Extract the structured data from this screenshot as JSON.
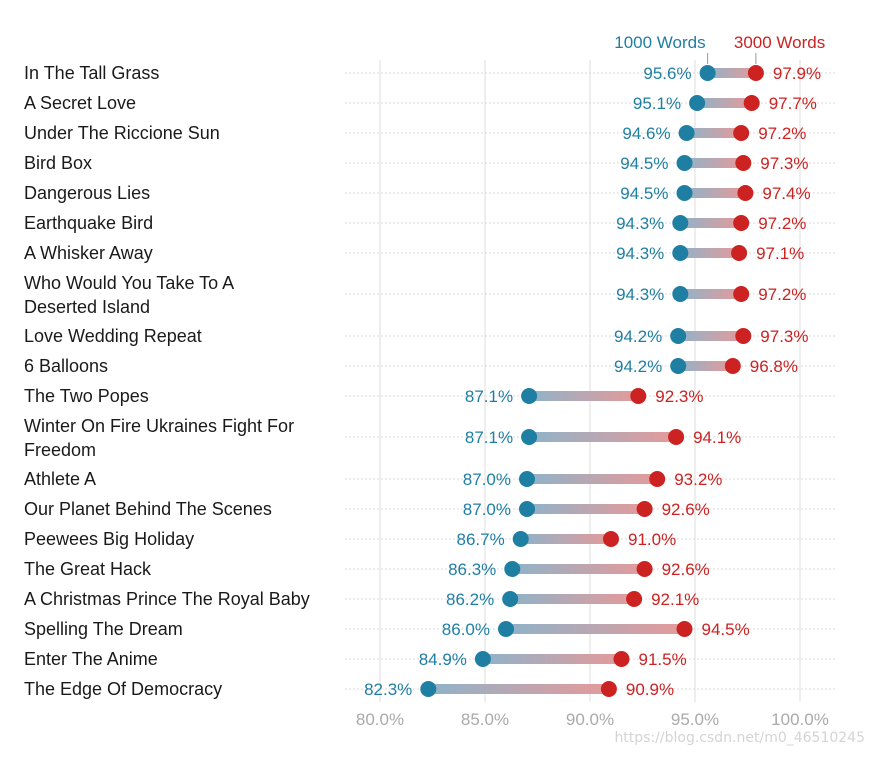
{
  "chart_data": {
    "type": "dumbbell",
    "xlim": [
      0.79,
      1.01
    ],
    "x_ticks": [
      0.8,
      0.85,
      0.9,
      0.95,
      1.0
    ],
    "x_tick_labels": [
      "80.0%",
      "85.0%",
      "90.0%",
      "95.0%",
      "100.0%"
    ],
    "grid": true,
    "series": [
      {
        "name": "1000 Words",
        "color": "#1f7fa3"
      },
      {
        "name": "3000 Words",
        "color": "#cc2222"
      }
    ],
    "rows": [
      {
        "category": "In The Tall Grass",
        "v1000": 0.956,
        "v3000": 0.979,
        "label1000": "95.6%",
        "label3000": "97.9%"
      },
      {
        "category": "A Secret Love",
        "v1000": 0.951,
        "v3000": 0.977,
        "label1000": "95.1%",
        "label3000": "97.7%"
      },
      {
        "category": "Under The Riccione Sun",
        "v1000": 0.946,
        "v3000": 0.972,
        "label1000": "94.6%",
        "label3000": "97.2%"
      },
      {
        "category": "Bird Box",
        "v1000": 0.945,
        "v3000": 0.973,
        "label1000": "94.5%",
        "label3000": "97.3%"
      },
      {
        "category": "Dangerous Lies",
        "v1000": 0.945,
        "v3000": 0.974,
        "label1000": "94.5%",
        "label3000": "97.4%"
      },
      {
        "category": "Earthquake Bird",
        "v1000": 0.943,
        "v3000": 0.972,
        "label1000": "94.3%",
        "label3000": "97.2%"
      },
      {
        "category": "A Whisker Away",
        "v1000": 0.943,
        "v3000": 0.971,
        "label1000": "94.3%",
        "label3000": "97.1%"
      },
      {
        "category": "Who Would You Take To A Deserted Island",
        "lines": [
          "Who Would You Take To A",
          "Deserted Island"
        ],
        "v1000": 0.943,
        "v3000": 0.972,
        "label1000": "94.3%",
        "label3000": "97.2%"
      },
      {
        "category": "Love Wedding Repeat",
        "v1000": 0.942,
        "v3000": 0.973,
        "label1000": "94.2%",
        "label3000": "97.3%"
      },
      {
        "category": "6 Balloons",
        "v1000": 0.942,
        "v3000": 0.968,
        "label1000": "94.2%",
        "label3000": "96.8%"
      },
      {
        "category": "The Two Popes",
        "v1000": 0.871,
        "v3000": 0.923,
        "label1000": "87.1%",
        "label3000": "92.3%"
      },
      {
        "category": "Winter On Fire Ukraines Fight For Freedom",
        "lines": [
          "Winter On Fire Ukraines Fight For",
          "Freedom"
        ],
        "v1000": 0.871,
        "v3000": 0.941,
        "label1000": "87.1%",
        "label3000": "94.1%"
      },
      {
        "category": "Athlete A",
        "v1000": 0.87,
        "v3000": 0.932,
        "label1000": "87.0%",
        "label3000": "93.2%"
      },
      {
        "category": "Our Planet Behind The Scenes",
        "v1000": 0.87,
        "v3000": 0.926,
        "label1000": "87.0%",
        "label3000": "92.6%"
      },
      {
        "category": "Peewees Big Holiday",
        "v1000": 0.867,
        "v3000": 0.91,
        "label1000": "86.7%",
        "label3000": "91.0%"
      },
      {
        "category": "The Great Hack",
        "v1000": 0.863,
        "v3000": 0.926,
        "label1000": "86.3%",
        "label3000": "92.6%"
      },
      {
        "category": "A Christmas Prince The Royal Baby",
        "v1000": 0.862,
        "v3000": 0.921,
        "label1000": "86.2%",
        "label3000": "92.1%"
      },
      {
        "category": "Spelling The Dream",
        "v1000": 0.86,
        "v3000": 0.945,
        "label1000": "86.0%",
        "label3000": "94.5%"
      },
      {
        "category": "Enter The Anime",
        "v1000": 0.849,
        "v3000": 0.915,
        "label1000": "84.9%",
        "label3000": "91.5%"
      },
      {
        "category": "The Edge Of Democracy",
        "v1000": 0.823,
        "v3000": 0.909,
        "label1000": "82.3%",
        "label3000": "90.9%"
      }
    ]
  },
  "watermark": "https://blog.csdn.net/m0_46510245"
}
